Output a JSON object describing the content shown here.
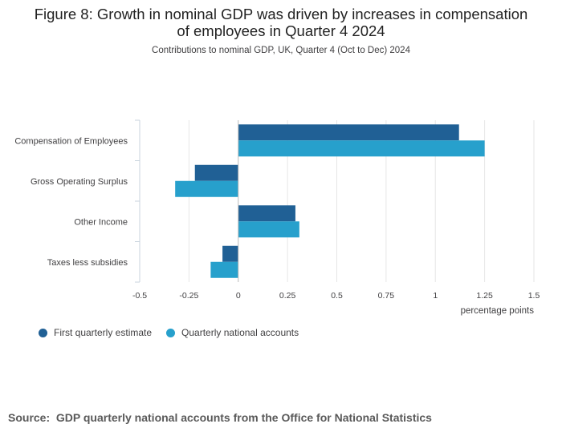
{
  "title_line1": "Figure 8: Growth in nominal GDP was driven by increases in compensation",
  "title_line2": "of employees in Quarter 4 2024",
  "subtitle": "Contributions to nominal GDP, UK, Quarter 4 (Oct to Dec) 2024",
  "source_label": "Source:",
  "source_text": "GDP quarterly national accounts from the Office for National Statistics",
  "chart_data": {
    "type": "bar",
    "orientation": "horizontal",
    "categories": [
      "Compensation of Employees",
      "Gross Operating Surplus",
      "Other Income",
      "Taxes less subsidies"
    ],
    "series": [
      {
        "name": "First quarterly estimate",
        "color": "#206095",
        "values": [
          1.12,
          -0.22,
          0.29,
          -0.08
        ]
      },
      {
        "name": "Quarterly national accounts",
        "color": "#27a0cc",
        "values": [
          1.25,
          -0.32,
          0.31,
          -0.14
        ]
      }
    ],
    "xlabel": "percentage points",
    "xlim": [
      -0.5,
      1.5
    ],
    "xticks": [
      -0.5,
      -0.25,
      0,
      0.25,
      0.5,
      0.75,
      1,
      1.25,
      1.5
    ],
    "xtick_labels": [
      "-0.5",
      "-0.25",
      "0",
      "0.25",
      "0.5",
      "0.75",
      "1",
      "1.25",
      "1.5"
    ],
    "grid": true,
    "legend_position": "bottom-left"
  }
}
